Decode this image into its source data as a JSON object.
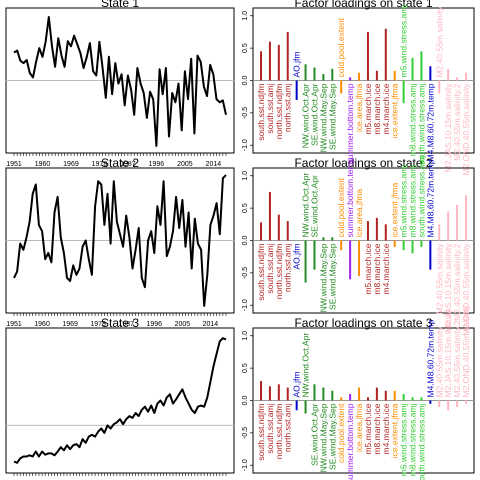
{
  "chart_data": [
    {
      "type": "line",
      "title": "State 1",
      "x_tick_labels": [
        "1951",
        "1960",
        "1969",
        "1978",
        "1987",
        "1996",
        "2005",
        "2014"
      ],
      "x_range": [
        1951,
        2019
      ],
      "show_x_tick_labels": true,
      "x_tick_every": 1,
      "y_ticks": [],
      "zero_line": 0,
      "ylim": [
        -1.1,
        1.1
      ],
      "x_start": 1951,
      "values": [
        0.45,
        0.48,
        0.32,
        0.28,
        0.33,
        0.12,
        0.05,
        0.3,
        0.52,
        0.38,
        0.62,
        1.02,
        0.55,
        0.22,
        0.68,
        0.4,
        0.22,
        0.63,
        0.55,
        0.72,
        0.58,
        0.44,
        0.2,
        0.38,
        0.6,
        0.15,
        0.08,
        0.62,
        0.2,
        -0.28,
        0.38,
        -0.22,
        0.28,
        -0.05,
        0.1,
        -0.4,
        0.08,
        -0.15,
        -0.55,
        0.2,
        -0.05,
        -0.2,
        -0.6,
        -0.18,
        -0.3,
        -1.05,
        0.18,
        -0.22,
        0.2,
        -0.9,
        -0.2,
        -0.35,
        -0.05,
        -0.8,
        0.15,
        -0.3,
        0.35,
        -0.85,
        0.4,
        0.3,
        -0.1,
        -0.25,
        0.25,
        0.1,
        -0.3,
        -0.35,
        -0.32,
        -0.55
      ]
    },
    {
      "type": "bar",
      "title": "Factor loadings on state 1",
      "y_ticks": [
        1.0,
        0.5,
        0.0,
        -0.5,
        -1.0
      ],
      "y_tick_labels": [
        "1.0",
        "0.5",
        "0.0",
        "-0.5",
        "-1.0"
      ],
      "ylim": [
        -1.12,
        1.12
      ],
      "categories": [
        "south.sst.ndjfm",
        "south.sst.amj",
        "north.sst.ndjfm",
        "north.sst.amj",
        "AO.jfm",
        "NW.wind.Oct.Apr",
        "SE.wind.Oct.Apr",
        "NW.wind.May.Sep",
        "SE.wind.May.Sep",
        "cold.pool.extent",
        "summer.bottom.temp",
        "ice.area.jfma",
        "m5.march.ice",
        "m8.march.ice",
        "m4.march.ice",
        "ice.extent.jfma",
        "m5.wind.stress.amj",
        "m8.wind.stress.amj",
        "south.wind.stress.amj",
        "M4.M8.60.72m.temp",
        "M2.40.55m.salinity",
        "M2.JAS.10.15m.salinity",
        "M2.40.55m.salinity.2",
        "M2.OND.40.55m.salinity"
      ],
      "values": [
        0.45,
        0.6,
        0.55,
        0.75,
        -0.3,
        0.25,
        0.2,
        0.1,
        0.18,
        -0.2,
        0.05,
        0.12,
        0.75,
        0.15,
        0.8,
        0.15,
        -0.35,
        0.35,
        0.45,
        0.22,
        -0.2,
        0.18,
        0.05,
        0.12
      ],
      "colors": [
        "#b22222",
        "#b22222",
        "#b22222",
        "#b22222",
        "#0000cd",
        "#228b22",
        "#228b22",
        "#228b22",
        "#228b22",
        "#ff8c00",
        "#a020f0",
        "#ff8c00",
        "#b22222",
        "#b22222",
        "#b22222",
        "#ff8c00",
        "#32cd32",
        "#32cd32",
        "#32cd32",
        "#0000cd",
        "#ffb6c1",
        "#ffb6c1",
        "#ffb6c1",
        "#ffb6c1"
      ]
    },
    {
      "type": "line",
      "title": "State 2",
      "x_tick_labels": [
        "1951",
        "1960",
        "1969",
        "1978",
        "1987",
        "1996",
        "2005",
        "2014"
      ],
      "x_range": [
        1951,
        2019
      ],
      "show_x_tick_labels": true,
      "x_tick_every": 1,
      "y_ticks": [],
      "zero_line": 0,
      "ylim": [
        -1.1,
        1.1
      ],
      "x_start": 1951,
      "values": [
        -0.6,
        -0.5,
        -0.05,
        -0.15,
        0.05,
        0.3,
        0.75,
        0.9,
        0.25,
        0.15,
        -0.3,
        -0.2,
        -0.35,
        0.45,
        0.7,
        0.05,
        -0.2,
        -0.6,
        -0.65,
        -0.4,
        -0.55,
        -0.45,
        -0.1,
        0.0,
        -0.3,
        -0.55,
        0.55,
        0.95,
        0.9,
        0.25,
        0.75,
        -0.05,
        0.95,
        0.3,
        0.1,
        -0.1,
        0.4,
        0.05,
        -0.45,
        -0.15,
        0.2,
        -0.6,
        -0.75,
        0.0,
        0.15,
        -0.2,
        0.55,
        0.25,
        0.95,
        -0.25,
        -0.1,
        0.15,
        0.7,
        0.2,
        0.65,
        -0.1,
        0.45,
        -0.45,
        0.35,
        -0.05,
        -0.15,
        -1.05,
        -0.55,
        0.25,
        0.4,
        0.6,
        0.1,
        1.0,
        1.05
      ]
    },
    {
      "type": "bar",
      "title": "Factor loadings on state 2",
      "y_ticks": [
        1.0,
        0.5,
        0.0,
        -0.5,
        -1.0
      ],
      "y_tick_labels": [
        "1.0",
        "0.5",
        "0.0",
        "-0.5",
        "-1.0"
      ],
      "ylim": [
        -1.12,
        1.12
      ],
      "categories": [
        "south.sst.ndjfm",
        "south.sst.amj",
        "north.sst.ndjfm",
        "north.sst.amj",
        "AO.jfm",
        "NW.wind.Oct.Apr",
        "SE.wind.Oct.Apr",
        "NW.wind.May.Sep",
        "SE.wind.May.Sep",
        "cold.pool.extent",
        "summer.bottom.temp",
        "ice.area.jfma",
        "m5.march.ice",
        "m8.march.ice",
        "m4.march.ice",
        "ice.extent.jfma",
        "m5.wind.stress.amj",
        "m8.wind.stress.amj",
        "south.wind.stress.amj",
        "M4.M8.60.72m.temp",
        "M2.40.55m.salinity",
        "M2.JAS.10.15m.salinity",
        "M2.40.55m.salinity.2",
        "M2.OND.40.55m.salinity"
      ],
      "values": [
        0.28,
        0.75,
        0.4,
        0.3,
        0.0,
        -0.65,
        -0.45,
        0.05,
        0.05,
        -0.15,
        -0.6,
        -0.55,
        0.3,
        0.35,
        0.25,
        -0.1,
        -0.15,
        -0.2,
        -0.1,
        -0.45,
        0.25,
        0.45,
        0.55,
        0.7
      ],
      "colors": [
        "#b22222",
        "#b22222",
        "#b22222",
        "#b22222",
        "#0000cd",
        "#228b22",
        "#228b22",
        "#228b22",
        "#228b22",
        "#ff8c00",
        "#a020f0",
        "#ff8c00",
        "#b22222",
        "#b22222",
        "#b22222",
        "#ff8c00",
        "#32cd32",
        "#32cd32",
        "#32cd32",
        "#0000cd",
        "#ffb6c1",
        "#ffb6c1",
        "#ffb6c1",
        "#ffb6c1"
      ]
    },
    {
      "type": "line",
      "title": "State 3",
      "x_tick_labels": [],
      "x_range": [
        1951,
        2019
      ],
      "show_x_tick_labels": false,
      "x_tick_every": 1,
      "y_ticks": [],
      "zero_line": -0.4,
      "ylim": [
        -1.1,
        1.1
      ],
      "x_start": 1951,
      "values": [
        -0.98,
        -1.0,
        -0.93,
        -0.9,
        -0.9,
        -0.88,
        -0.9,
        -0.82,
        -0.9,
        -0.82,
        -0.87,
        -0.85,
        -0.85,
        -0.88,
        -0.82,
        -0.75,
        -0.8,
        -0.72,
        -0.78,
        -0.72,
        -0.7,
        -0.75,
        -0.62,
        -0.68,
        -0.58,
        -0.55,
        -0.58,
        -0.5,
        -0.45,
        -0.52,
        -0.4,
        -0.45,
        -0.38,
        -0.35,
        -0.3,
        -0.38,
        -0.3,
        -0.25,
        -0.28,
        -0.2,
        -0.25,
        -0.15,
        -0.1,
        -0.18,
        -0.08,
        -0.2,
        -0.05,
        0.0,
        -0.08,
        0.05,
        0.1,
        -0.05,
        0.02,
        0.1,
        0.18,
        0.05,
        -0.05,
        -0.15,
        -0.2,
        -0.1,
        -0.08,
        -0.1,
        0.05,
        0.3,
        0.55,
        0.75,
        0.95,
        1.0,
        0.98
      ]
    },
    {
      "type": "bar",
      "title": "Factor loadings on state 3",
      "y_ticks": [
        1.0,
        0.5,
        0.0,
        -0.5,
        -1.0
      ],
      "y_tick_labels": [
        "1.0",
        "0.5",
        "0.0",
        "-0.5",
        "-1.0"
      ],
      "ylim": [
        -1.12,
        1.12
      ],
      "categories": [
        "south.sst.ndjfm",
        "south.sst.amj",
        "north.sst.ndjfm",
        "north.sst.amj",
        "AO.jfm",
        "NW.wind.Oct.Apr",
        "SE.wind.Oct.Apr",
        "NW.wind.May.Sep",
        "SE.wind.May.Sep",
        "cold.pool.extent",
        "summer.bottom.temp",
        "ice.area.jfma",
        "m5.march.ice",
        "m8.march.ice",
        "m4.march.ice",
        "ice.extent.jfma",
        "m5.wind.stress.amj",
        "m8.wind.stress.amj",
        "south.wind.stress.amj",
        "M4.M8.60.72m.temp",
        "M2.40.55m.salinity",
        "M2.JAS.10.15m.salinity",
        "M2.40.55m.salinity.2",
        "M2.OND.40.55m.salinity"
      ],
      "values": [
        0.3,
        0.22,
        0.25,
        0.2,
        -0.15,
        -0.2,
        0.25,
        0.2,
        0.15,
        0.05,
        0.1,
        0.2,
        0.05,
        0.2,
        0.15,
        0.15,
        0.1,
        0.05,
        0.05,
        -0.05,
        -0.1,
        -0.15,
        -0.1,
        -0.05
      ],
      "colors": [
        "#b22222",
        "#b22222",
        "#b22222",
        "#b22222",
        "#0000cd",
        "#228b22",
        "#228b22",
        "#228b22",
        "#228b22",
        "#ff8c00",
        "#a020f0",
        "#ff8c00",
        "#b22222",
        "#b22222",
        "#b22222",
        "#ff8c00",
        "#32cd32",
        "#32cd32",
        "#32cd32",
        "#0000cd",
        "#ffb6c1",
        "#ffb6c1",
        "#ffb6c1",
        "#ffb6c1"
      ]
    }
  ]
}
